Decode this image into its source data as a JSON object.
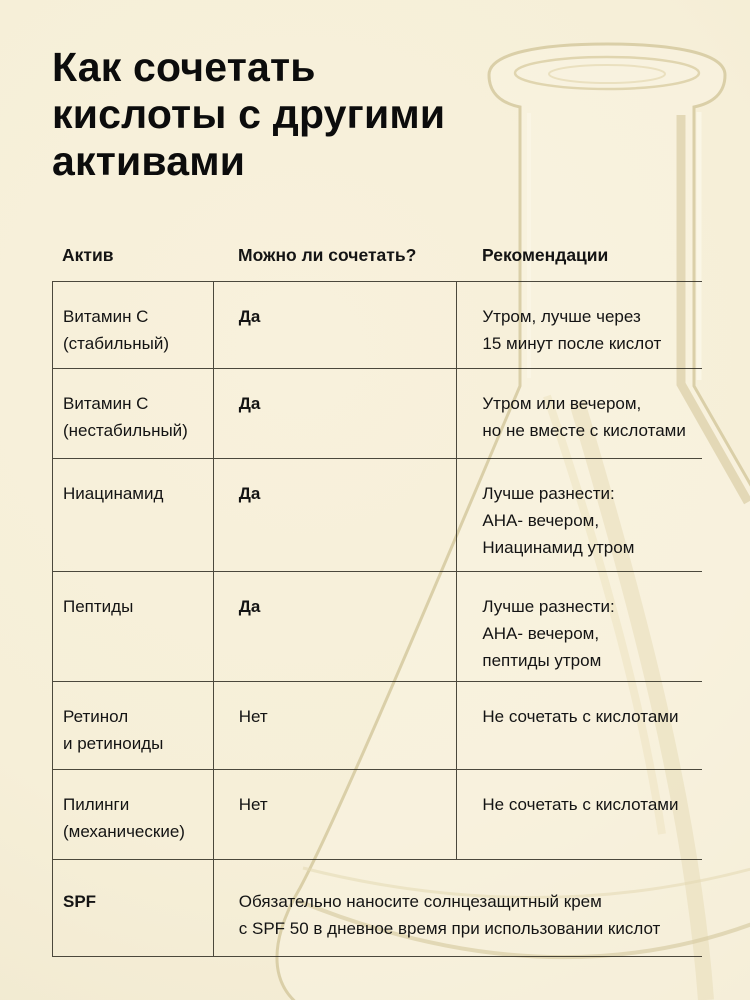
{
  "title": "Как сочетать\nкислоты с другими\nактивами",
  "table": {
    "headers": [
      "Актив",
      "Можно ли сочетать?",
      "Рекомендации"
    ],
    "rows": [
      {
        "active": "Витамин C\n(стабильный)",
        "combinable": "Да",
        "combinable_bold": true,
        "recommendation": "Утром, лучше через\n15 минут после кислот"
      },
      {
        "active": "Витамин C\n(нестабильный)",
        "combinable": "Да",
        "combinable_bold": true,
        "recommendation": "Утром или вечером,\nно не вместе с кислотами"
      },
      {
        "active": "Ниацинамид",
        "combinable": "Да",
        "combinable_bold": true,
        "recommendation": "Лучше разнести:\nАНА- вечером,\nНиацинамид утром"
      },
      {
        "active": "Пептиды",
        "combinable": "Да",
        "combinable_bold": true,
        "recommendation": "Лучше разнести:\nАНА- вечером,\nпептиды утром"
      },
      {
        "active": "Ретинол\nи ретиноиды",
        "combinable": "Нет",
        "combinable_bold": false,
        "recommendation": "Не сочетать с кислотами"
      },
      {
        "active": "Пилинги\n(механические)",
        "combinable": "Нет",
        "combinable_bold": false,
        "recommendation": "Не сочетать с кислотами"
      }
    ],
    "footer_row": {
      "active": "SPF",
      "note": "Обязательно наносите солнцезащитный крем\nс SPF 50 в дневное время при использовании кислот"
    }
  },
  "colors": {
    "background": "#f6efd8",
    "text": "#141414",
    "table_line": "#2d2a20",
    "flask_edge": "#d5c99f",
    "flask_fill": "#faf4e2"
  },
  "decor": {
    "flask_icon": "erlenmeyer-flask"
  }
}
